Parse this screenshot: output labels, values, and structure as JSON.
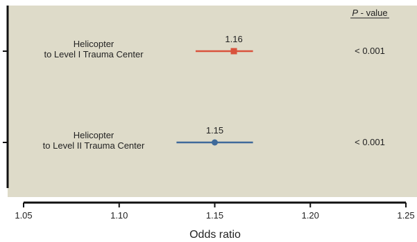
{
  "chart_data": {
    "type": "forest",
    "title": "",
    "xlabel": "Odds ratio",
    "ylabel": "",
    "xlim": [
      1.05,
      1.25
    ],
    "xticks": [
      1.05,
      1.1,
      1.15,
      1.2,
      1.25
    ],
    "xtick_labels": [
      "1.05",
      "1.10",
      "1.15",
      "1.20",
      "1.25"
    ],
    "pvalue_header": "P - value",
    "pvalue_header_italic_part": "P",
    "rows": [
      {
        "label_lines": [
          "Helicopter",
          "to Level I Trauma Center"
        ],
        "estimate": 1.16,
        "ci_low": 1.14,
        "ci_high": 1.17,
        "estimate_label": "1.16",
        "p_value": "< 0.001",
        "marker": "square",
        "color": "#d9533c"
      },
      {
        "label_lines": [
          "Helicopter",
          "to Level II Trauma Center"
        ],
        "estimate": 1.15,
        "ci_low": 1.13,
        "ci_high": 1.17,
        "estimate_label": "1.15",
        "p_value": "< 0.001",
        "marker": "circle",
        "color": "#3f6a9a"
      }
    ],
    "colors": {
      "panel_background": "#dedbc9",
      "axis": "#111111"
    }
  }
}
